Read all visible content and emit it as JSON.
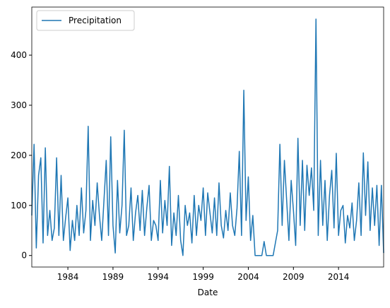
{
  "chart_data": {
    "type": "line",
    "xlabel": "Date",
    "x": [
      1980,
      1980.25,
      1980.5,
      1980.75,
      1981,
      1981.25,
      1981.5,
      1981.75,
      1982,
      1982.25,
      1982.5,
      1982.75,
      1983,
      1983.25,
      1983.5,
      1983.75,
      1984,
      1984.25,
      1984.5,
      1984.75,
      1985,
      1985.25,
      1985.5,
      1985.75,
      1986,
      1986.25,
      1986.5,
      1986.75,
      1987,
      1987.25,
      1987.5,
      1987.75,
      1988,
      1988.25,
      1988.5,
      1988.75,
      1989,
      1989.25,
      1989.5,
      1989.75,
      1990,
      1990.25,
      1990.5,
      1990.75,
      1991,
      1991.25,
      1991.5,
      1991.75,
      1992,
      1992.25,
      1992.5,
      1992.75,
      1993,
      1993.25,
      1993.5,
      1993.75,
      1994,
      1994.25,
      1994.5,
      1994.75,
      1995,
      1995.25,
      1995.5,
      1995.75,
      1996,
      1996.25,
      1996.5,
      1996.75,
      1997,
      1997.25,
      1997.5,
      1997.75,
      1998,
      1998.25,
      1998.5,
      1998.75,
      1999,
      1999.25,
      1999.5,
      1999.75,
      2000,
      2000.25,
      2000.5,
      2000.75,
      2001,
      2001.25,
      2001.5,
      2001.75,
      2002,
      2002.25,
      2002.5,
      2002.75,
      2003,
      2003.25,
      2003.5,
      2003.75,
      2004,
      2004.25,
      2004.5,
      2004.75,
      2005,
      2005.25,
      2005.5,
      2005.75,
      2006,
      2006.25,
      2006.5,
      2006.75,
      2007,
      2007.25,
      2007.5,
      2007.75,
      2008,
      2008.25,
      2008.5,
      2008.75,
      2009,
      2009.25,
      2009.5,
      2009.75,
      2010,
      2010.25,
      2010.5,
      2010.75,
      2011,
      2011.25,
      2011.5,
      2011.75,
      2012,
      2012.25,
      2012.5,
      2012.75,
      2013,
      2013.25,
      2013.5,
      2013.75,
      2014,
      2014.25,
      2014.5,
      2014.75,
      2015,
      2015.25,
      2015.5,
      2015.75,
      2016,
      2016.25,
      2016.5,
      2016.75,
      2017,
      2017.25,
      2017.5,
      2017.75,
      2018,
      2018.25,
      2018.5,
      2018.75,
      2019
    ],
    "series": [
      {
        "name": "Precipitation",
        "color": "#1f77b4",
        "values": [
          80,
          222,
          15,
          160,
          195,
          25,
          215,
          40,
          90,
          30,
          55,
          195,
          40,
          160,
          30,
          75,
          115,
          10,
          70,
          30,
          100,
          40,
          135,
          45,
          90,
          258,
          30,
          110,
          60,
          145,
          80,
          30,
          110,
          190,
          40,
          237,
          60,
          5,
          150,
          45,
          100,
          250,
          40,
          60,
          135,
          30,
          85,
          120,
          50,
          130,
          40,
          95,
          140,
          30,
          70,
          60,
          30,
          150,
          45,
          110,
          60,
          178,
          20,
          85,
          40,
          120,
          30,
          0,
          100,
          60,
          85,
          25,
          120,
          40,
          100,
          70,
          135,
          40,
          125,
          85,
          45,
          115,
          40,
          145,
          60,
          35,
          90,
          50,
          125,
          60,
          40,
          95,
          208,
          40,
          330,
          70,
          157,
          30,
          80,
          0,
          0,
          0,
          0,
          28,
          0,
          0,
          0,
          0,
          25,
          50,
          222,
          60,
          190,
          110,
          30,
          150,
          90,
          20,
          234,
          60,
          190,
          50,
          180,
          120,
          175,
          90,
          472,
          40,
          190,
          60,
          150,
          30,
          120,
          170,
          55,
          204,
          40,
          90,
          100,
          25,
          80,
          55,
          105,
          30,
          70,
          145,
          40,
          205,
          80,
          187,
          50,
          135,
          60,
          140,
          20,
          140,
          5
        ]
      }
    ],
    "xlim": [
      1980,
      2019
    ],
    "xticks": [
      1984,
      1989,
      1994,
      1999,
      2004,
      2009,
      2014
    ],
    "ylim": [
      -23,
      496
    ],
    "yticks": [
      0,
      100,
      200,
      300,
      400
    ],
    "legend": "upper left"
  }
}
